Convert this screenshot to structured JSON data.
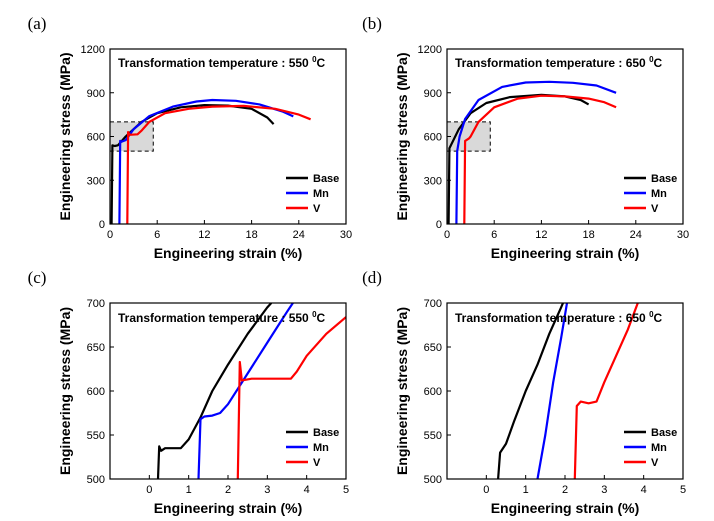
{
  "chart_data": [
    {
      "panel": "(a)",
      "type": "line",
      "annotation": {
        "text": "Transformation temperature : 550 ",
        "sup": "0",
        "unit": "C"
      },
      "xlabel": "Engineering strain (%)",
      "ylabel": "Engineering stress (MPa)",
      "xlim": [
        0,
        30
      ],
      "ylim": [
        0,
        1200
      ],
      "xticks": [
        0,
        6,
        12,
        18,
        24,
        30
      ],
      "yticks": [
        0,
        300,
        600,
        900,
        1200
      ],
      "legend_position": "bottom-right",
      "highlight_box": {
        "x": [
          0,
          5.5
        ],
        "y": [
          500,
          700
        ]
      },
      "series": [
        {
          "name": "Base",
          "color": "#000000",
          "points": [
            [
              0.2,
              0
            ],
            [
              0.3,
              540
            ],
            [
              0.6,
              535
            ],
            [
              1,
              540
            ],
            [
              2,
              600
            ],
            [
              4,
              700
            ],
            [
              6,
              760
            ],
            [
              9,
              800
            ],
            [
              12,
              815
            ],
            [
              15,
              812
            ],
            [
              18,
              790
            ],
            [
              20,
              730
            ],
            [
              20.8,
              685
            ]
          ]
        },
        {
          "name": "Mn",
          "color": "#0000ff",
          "points": [
            [
              1.2,
              0
            ],
            [
              1.3,
              570
            ],
            [
              1.5,
              565
            ],
            [
              2,
              575
            ],
            [
              3,
              650
            ],
            [
              5,
              740
            ],
            [
              8,
              805
            ],
            [
              11,
              840
            ],
            [
              13,
              850
            ],
            [
              16,
              845
            ],
            [
              19,
              820
            ],
            [
              22,
              770
            ],
            [
              23.3,
              738
            ]
          ]
        },
        {
          "name": "V",
          "color": "#ff0000",
          "points": [
            [
              2.2,
              0
            ],
            [
              2.3,
              630
            ],
            [
              2.5,
              612
            ],
            [
              3.5,
              615
            ],
            [
              4,
              640
            ],
            [
              5,
              700
            ],
            [
              7,
              760
            ],
            [
              10,
              790
            ],
            [
              13,
              805
            ],
            [
              17,
              810
            ],
            [
              21,
              790
            ],
            [
              24,
              750
            ],
            [
              25.5,
              718
            ]
          ]
        }
      ]
    },
    {
      "panel": "(b)",
      "type": "line",
      "annotation": {
        "text": "Transformation temperature : 650 ",
        "sup": "0",
        "unit": "C"
      },
      "xlabel": "Engineering strain (%)",
      "ylabel": "Engineering stress (MPa)",
      "xlim": [
        0,
        30
      ],
      "ylim": [
        0,
        1200
      ],
      "xticks": [
        0,
        6,
        12,
        18,
        24,
        30
      ],
      "yticks": [
        0,
        300,
        600,
        900,
        1200
      ],
      "legend_position": "bottom-right",
      "highlight_box": {
        "x": [
          0,
          5.5
        ],
        "y": [
          500,
          700
        ]
      },
      "series": [
        {
          "name": "Base",
          "color": "#000000",
          "points": [
            [
              0.2,
              0
            ],
            [
              0.3,
              520
            ],
            [
              0.5,
              540
            ],
            [
              1.5,
              650
            ],
            [
              3,
              760
            ],
            [
              5,
              830
            ],
            [
              8,
              870
            ],
            [
              12,
              885
            ],
            [
              15,
              875
            ],
            [
              17,
              850
            ],
            [
              18,
              820
            ]
          ]
        },
        {
          "name": "Mn",
          "color": "#0000ff",
          "points": [
            [
              1.2,
              0
            ],
            [
              1.3,
              500
            ],
            [
              1.6,
              600
            ],
            [
              2.3,
              720
            ],
            [
              4,
              850
            ],
            [
              7,
              940
            ],
            [
              10,
              970
            ],
            [
              13,
              975
            ],
            [
              16,
              968
            ],
            [
              19,
              950
            ],
            [
              21.5,
              900
            ]
          ]
        },
        {
          "name": "V",
          "color": "#ff0000",
          "points": [
            [
              2.2,
              0
            ],
            [
              2.3,
              570
            ],
            [
              2.8,
              587
            ],
            [
              3,
              600
            ],
            [
              4,
              700
            ],
            [
              6,
              800
            ],
            [
              9,
              860
            ],
            [
              12,
              880
            ],
            [
              15,
              875
            ],
            [
              18,
              860
            ],
            [
              20,
              835
            ],
            [
              21.5,
              800
            ]
          ]
        }
      ]
    },
    {
      "panel": "(c)",
      "type": "line",
      "annotation": {
        "text": "Transformation temperature : 550 ",
        "sup": "0",
        "unit": "C"
      },
      "xlabel": "Engineering strain (%)",
      "ylabel": "Engineering stress (MPa)",
      "xlim": [
        -1,
        5
      ],
      "ylim": [
        500,
        700
      ],
      "xticks": [
        0,
        1,
        2,
        3,
        4,
        5
      ],
      "yticks": [
        500,
        550,
        600,
        650,
        700
      ],
      "legend_position": "bottom-right",
      "series": [
        {
          "name": "Base",
          "color": "#000000",
          "points": [
            [
              0.22,
              500
            ],
            [
              0.25,
              537
            ],
            [
              0.3,
              532
            ],
            [
              0.4,
              535
            ],
            [
              0.6,
              535
            ],
            [
              0.8,
              535
            ],
            [
              1,
              545
            ],
            [
              1.3,
              570
            ],
            [
              1.6,
              600
            ],
            [
              2,
              630
            ],
            [
              2.5,
              665
            ],
            [
              3,
              695
            ],
            [
              3.1,
              700
            ]
          ]
        },
        {
          "name": "Mn",
          "color": "#0000ff",
          "points": [
            [
              1.25,
              500
            ],
            [
              1.3,
              568
            ],
            [
              1.4,
              571
            ],
            [
              1.6,
              572
            ],
            [
              1.8,
              575
            ],
            [
              2,
              585
            ],
            [
              2.5,
              620
            ],
            [
              3,
              655
            ],
            [
              3.5,
              690
            ],
            [
              3.65,
              700
            ]
          ]
        },
        {
          "name": "V",
          "color": "#ff0000",
          "points": [
            [
              2.25,
              500
            ],
            [
              2.3,
              633
            ],
            [
              2.35,
              612
            ],
            [
              2.6,
              614
            ],
            [
              3,
              614
            ],
            [
              3.3,
              614
            ],
            [
              3.6,
              614
            ],
            [
              3.75,
              622
            ],
            [
              4,
              640
            ],
            [
              4.5,
              665
            ],
            [
              5,
              684
            ]
          ]
        }
      ]
    },
    {
      "panel": "(d)",
      "type": "line",
      "annotation": {
        "text": "Transformation temperature : 650 ",
        "sup": "0",
        "unit": "C"
      },
      "xlabel": "Engineering strain (%)",
      "ylabel": "Engineering stress (MPa)",
      "xlim": [
        -1,
        5
      ],
      "ylim": [
        500,
        700
      ],
      "xticks": [
        0,
        1,
        2,
        3,
        4,
        5
      ],
      "yticks": [
        500,
        550,
        600,
        650,
        700
      ],
      "legend_position": "bottom-right",
      "series": [
        {
          "name": "Base",
          "color": "#000000",
          "points": [
            [
              0.3,
              500
            ],
            [
              0.35,
              530
            ],
            [
              0.5,
              540
            ],
            [
              0.7,
              565
            ],
            [
              1,
              600
            ],
            [
              1.3,
              630
            ],
            [
              1.6,
              665
            ],
            [
              1.9,
              695
            ],
            [
              1.95,
              700
            ]
          ]
        },
        {
          "name": "Mn",
          "color": "#0000ff",
          "points": [
            [
              1.3,
              500
            ],
            [
              1.5,
              550
            ],
            [
              1.7,
              610
            ],
            [
              1.9,
              660
            ],
            [
              2.05,
              700
            ]
          ]
        },
        {
          "name": "V",
          "color": "#ff0000",
          "points": [
            [
              2.25,
              500
            ],
            [
              2.3,
              583
            ],
            [
              2.4,
              588
            ],
            [
              2.6,
              586
            ],
            [
              2.8,
              588
            ],
            [
              3,
              610
            ],
            [
              3.3,
              640
            ],
            [
              3.6,
              670
            ],
            [
              3.85,
              700
            ]
          ]
        }
      ]
    }
  ]
}
